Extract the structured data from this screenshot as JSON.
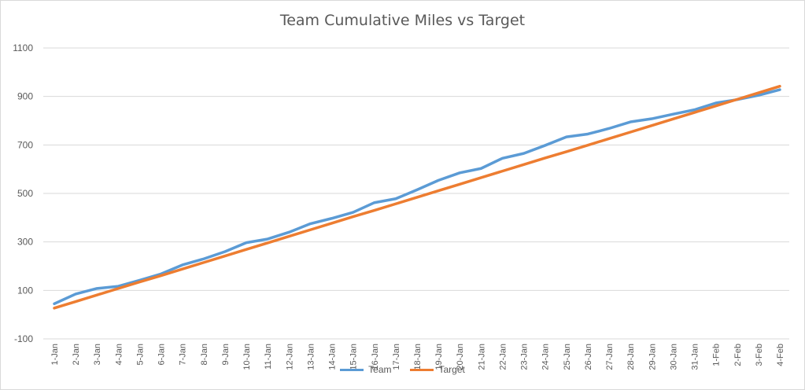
{
  "chart_data": {
    "type": "line",
    "title": "Team Cumulative Miles vs Target",
    "xlabel": "",
    "ylabel": "",
    "ylim": [
      -100,
      1100
    ],
    "yticks": [
      -100,
      100,
      300,
      500,
      700,
      900,
      1100
    ],
    "grid": true,
    "legend_position": "bottom",
    "categories": [
      "1-Jan",
      "2-Jan",
      "3-Jan",
      "4-Jan",
      "5-Jan",
      "6-Jan",
      "7-Jan",
      "8-Jan",
      "9-Jan",
      "10-Jan",
      "11-Jan",
      "12-Jan",
      "13-Jan",
      "14-Jan",
      "15-Jan",
      "16-Jan",
      "17-Jan",
      "18-Jan",
      "19-Jan",
      "20-Jan",
      "21-Jan",
      "22-Jan",
      "23-Jan",
      "24-Jan",
      "25-Jan",
      "26-Jan",
      "27-Jan",
      "28-Jan",
      "29-Jan",
      "30-Jan",
      "31-Jan",
      "1-Feb",
      "2-Feb",
      "3-Feb",
      "4-Feb"
    ],
    "series": [
      {
        "name": "Team",
        "color": "#5b9bd5",
        "values": [
          45,
          85,
          108,
          117,
          142,
          168,
          205,
          230,
          260,
          297,
          312,
          340,
          375,
          397,
          422,
          462,
          478,
          515,
          554,
          585,
          603,
          645,
          665,
          698,
          733,
          745,
          768,
          795,
          808,
          827,
          845,
          873,
          887,
          905,
          928
        ]
      },
      {
        "name": "Target",
        "color": "#ed7d31",
        "values": [
          27,
          54,
          81,
          108,
          135,
          161,
          188,
          215,
          242,
          269,
          296,
          323,
          350,
          377,
          404,
          430,
          457,
          484,
          511,
          538,
          565,
          592,
          619,
          646,
          672,
          699,
          726,
          753,
          780,
          807,
          834,
          861,
          888,
          915,
          942
        ]
      }
    ]
  }
}
